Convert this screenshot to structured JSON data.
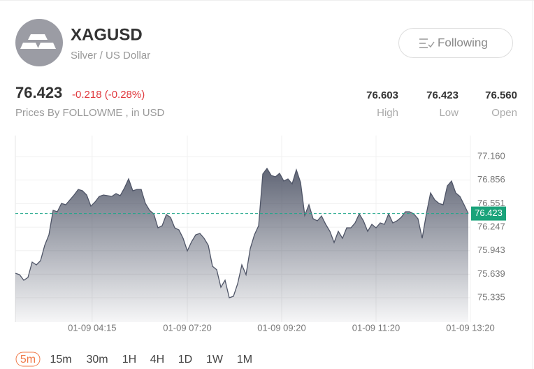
{
  "header": {
    "symbol": "XAGUSD",
    "name": "Silver / US Dollar",
    "follow_button": "Following"
  },
  "quote": {
    "price": "76.423",
    "change": "-0.218 (-0.28%)",
    "source": "Prices By FOLLOWME , in USD",
    "stats": [
      {
        "value": "76.603",
        "label": "High"
      },
      {
        "value": "76.423",
        "label": "Low"
      },
      {
        "value": "76.560",
        "label": "Open"
      }
    ]
  },
  "chart_data": {
    "type": "area",
    "color": "#4f5567",
    "values": [
      75.651,
      75.633,
      75.561,
      75.597,
      75.796,
      75.76,
      75.814,
      76.013,
      76.148,
      76.464,
      76.446,
      76.555,
      76.537,
      76.6,
      76.663,
      76.735,
      76.717,
      76.663,
      76.519,
      76.573,
      76.645,
      76.663,
      76.654,
      76.645,
      76.681,
      76.654,
      76.753,
      76.871,
      76.717,
      76.735,
      76.735,
      76.555,
      76.464,
      76.419,
      76.239,
      76.266,
      76.41,
      76.374,
      76.239,
      76.211,
      76.103,
      75.94,
      76.058,
      76.148,
      76.166,
      76.103,
      76.013,
      75.742,
      75.697,
      75.471,
      75.561,
      75.335,
      75.353,
      75.516,
      75.76,
      75.633,
      75.968,
      76.148,
      76.266,
      76.934,
      77.006,
      76.916,
      76.898,
      76.943,
      76.844,
      76.871,
      76.808,
      76.988,
      76.826,
      76.401,
      76.537,
      76.356,
      76.329,
      76.392,
      76.284,
      76.193,
      76.049,
      76.193,
      76.103,
      76.239,
      76.239,
      76.302,
      76.419,
      76.329,
      76.193,
      76.284,
      76.239,
      76.302,
      76.284,
      76.419,
      76.302,
      76.329,
      76.374,
      76.446,
      76.446,
      76.419,
      76.356,
      76.103,
      76.419,
      76.69,
      76.6,
      76.555,
      76.537,
      76.781,
      76.844,
      76.69,
      76.645,
      76.537,
      76.423
    ],
    "xlim": [
      0,
      108.5
    ],
    "xticks": [
      {
        "value": 18.3,
        "label": "01-09 04:15"
      },
      {
        "value": 41,
        "label": "01-09 07:20"
      },
      {
        "value": 63.5,
        "label": "01-09 09:20"
      },
      {
        "value": 86,
        "label": "01-09 11:20"
      },
      {
        "value": 108.5,
        "label": "01-09 13:20"
      }
    ],
    "ylim": [
      75.019,
      77.431
    ],
    "yticks": [
      {
        "value": 75.335,
        "label": "75.335"
      },
      {
        "value": 75.639,
        "label": "75.639"
      },
      {
        "value": 75.943,
        "label": "75.943"
      },
      {
        "value": 76.247,
        "label": "76.247"
      },
      {
        "value": 76.551,
        "label": "76.551"
      },
      {
        "value": 76.856,
        "label": "76.856"
      },
      {
        "value": 77.16,
        "label": "77.160"
      }
    ],
    "grid": true,
    "last_price": {
      "value": 76.423,
      "label": "76.423"
    }
  },
  "timeframes": {
    "items": [
      "5m",
      "15m",
      "30m",
      "1H",
      "4H",
      "1D",
      "1W",
      "1M"
    ],
    "selected": "5m"
  }
}
